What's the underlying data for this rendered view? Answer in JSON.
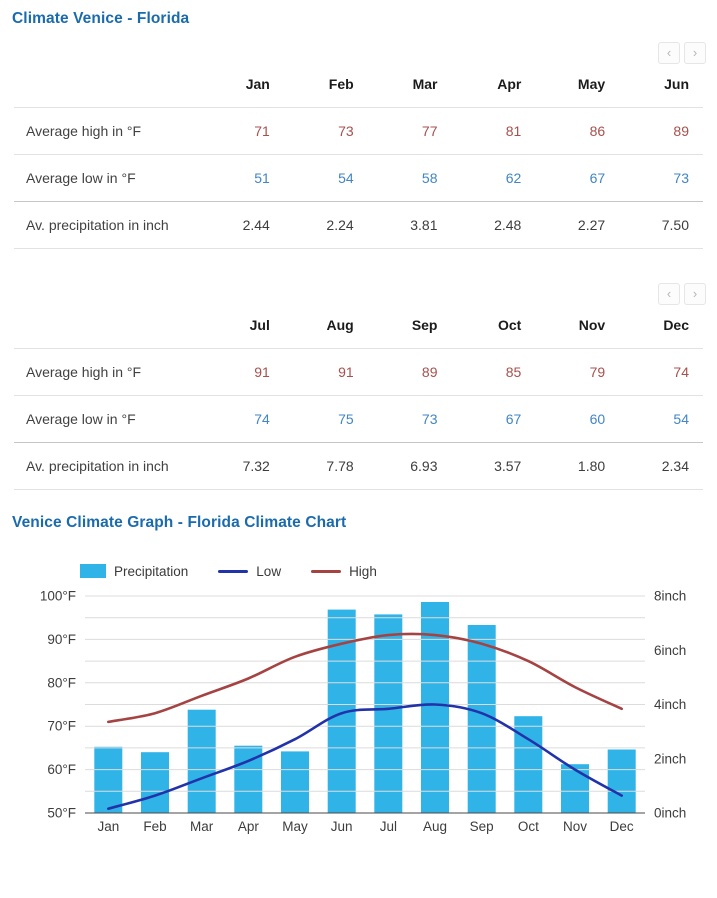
{
  "titles": {
    "tables": "Climate Venice - Florida",
    "chart": "Venice Climate Graph - Florida Climate Chart"
  },
  "pager": {
    "prev": "‹",
    "next": "›"
  },
  "tables": [
    {
      "columns": [
        "Jan",
        "Feb",
        "Mar",
        "Apr",
        "May",
        "Jun"
      ],
      "rows": [
        {
          "label": "Average high in °F",
          "key": "high",
          "values": [
            "71",
            "73",
            "77",
            "81",
            "86",
            "89"
          ]
        },
        {
          "label": "Average low in °F",
          "key": "low",
          "values": [
            "51",
            "54",
            "58",
            "62",
            "67",
            "73"
          ]
        },
        {
          "label": "Av. precipitation in inch",
          "key": "precip",
          "values": [
            "2.44",
            "2.24",
            "3.81",
            "2.48",
            "2.27",
            "7.50"
          ]
        }
      ]
    },
    {
      "columns": [
        "Jul",
        "Aug",
        "Sep",
        "Oct",
        "Nov",
        "Dec"
      ],
      "rows": [
        {
          "label": "Average high in °F",
          "key": "high",
          "values": [
            "91",
            "91",
            "89",
            "85",
            "79",
            "74"
          ]
        },
        {
          "label": "Average low in °F",
          "key": "low",
          "values": [
            "74",
            "75",
            "73",
            "67",
            "60",
            "54"
          ]
        },
        {
          "label": "Av. precipitation in inch",
          "key": "precip",
          "values": [
            "7.32",
            "7.78",
            "6.93",
            "3.57",
            "1.80",
            "2.34"
          ]
        }
      ]
    }
  ],
  "chart_data": {
    "type": "combo-bar-line",
    "categories": [
      "Jan",
      "Feb",
      "Mar",
      "Apr",
      "May",
      "Jun",
      "Jul",
      "Aug",
      "Sep",
      "Oct",
      "Nov",
      "Dec"
    ],
    "series": [
      {
        "name": "Precipitation",
        "type": "bar",
        "axis": "right",
        "unit": "inch",
        "values": [
          2.44,
          2.24,
          3.81,
          2.48,
          2.27,
          7.5,
          7.32,
          7.78,
          6.93,
          3.57,
          1.8,
          2.34
        ],
        "color": "#30b4e8"
      },
      {
        "name": "Low",
        "type": "line",
        "axis": "left",
        "unit": "°F",
        "values": [
          51,
          54,
          58,
          62,
          67,
          73,
          74,
          75,
          73,
          67,
          60,
          54
        ],
        "color": "#2233aa"
      },
      {
        "name": "High",
        "type": "line",
        "axis": "left",
        "unit": "°F",
        "values": [
          71,
          73,
          77,
          81,
          86,
          89,
          91,
          91,
          89,
          85,
          79,
          74
        ],
        "color": "#a54343"
      }
    ],
    "left_axis": {
      "min": 50,
      "max": 100,
      "tick_labels": [
        "100°F",
        "90°F",
        "80°F",
        "70°F",
        "60°F",
        "50°F"
      ],
      "ticks": [
        100,
        90,
        80,
        70,
        60,
        50
      ],
      "suffix": "°F",
      "gridline_step": 5
    },
    "right_axis": {
      "min": 0,
      "max": 8,
      "tick_labels": [
        "8inch",
        "6inch",
        "4inch",
        "2inch",
        "0inch"
      ],
      "ticks": [
        8,
        6,
        4,
        2,
        0
      ],
      "suffix": "inch"
    },
    "legend_position": "top",
    "grid": true
  },
  "colors": {
    "title_blue": "#1a6bad",
    "value_high": "#a8504c",
    "value_low": "#4186c5",
    "value_precip": "#3d3d3d",
    "bar": "#30b4e8",
    "line_low": "#2233aa",
    "line_high": "#a54343",
    "gridline": "#dcdcdc",
    "axis_line": "#4a4a4a",
    "axis_text": "#3d3d3d"
  }
}
